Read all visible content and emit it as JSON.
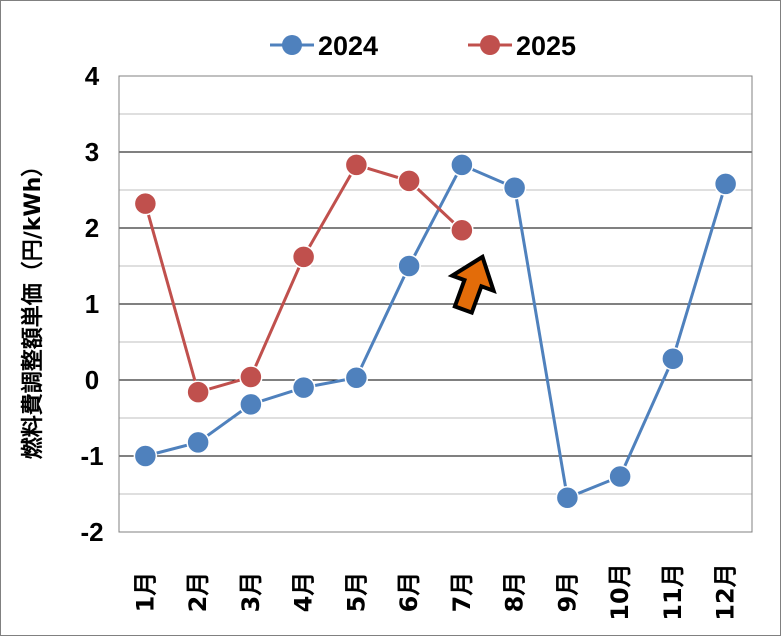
{
  "chart_data": {
    "type": "line",
    "ylabel": "燃料費調整額単価（円/kWh）",
    "ylim": [
      -2,
      4
    ],
    "yticks": [
      "4",
      "3",
      "2",
      "1",
      "0",
      "-1",
      "-2"
    ],
    "categories": [
      "1月",
      "2月",
      "3月",
      "4月",
      "5月",
      "6月",
      "7月",
      "8月",
      "9月",
      "10月",
      "11月",
      "12月"
    ],
    "grid": "horizontal",
    "legend": "top",
    "series": [
      {
        "name": "2024",
        "color": "#4F81BD",
        "values": [
          -1.0,
          -0.82,
          -0.32,
          -0.1,
          0.03,
          1.5,
          2.83,
          2.53,
          -1.55,
          -1.27,
          0.28,
          2.58
        ]
      },
      {
        "name": "2025",
        "color": "#C0504D",
        "values": [
          2.32,
          -0.16,
          0.04,
          1.62,
          2.83,
          2.62,
          1.97,
          null,
          null,
          null,
          null,
          null
        ]
      }
    ],
    "annotation": {
      "type": "arrow",
      "icon": "up-arrow-icon",
      "color": "#E36C09",
      "points_to_category": "7月"
    }
  }
}
